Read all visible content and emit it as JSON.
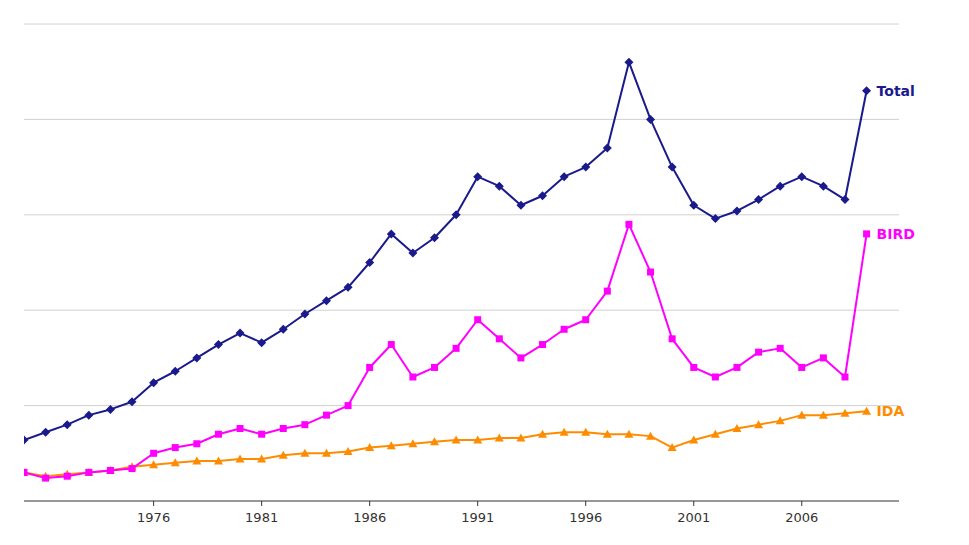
{
  "chart_data": {
    "type": "line",
    "x": [
      1970,
      1971,
      1972,
      1973,
      1974,
      1975,
      1976,
      1977,
      1978,
      1979,
      1980,
      1981,
      1982,
      1983,
      1984,
      1985,
      1986,
      1987,
      1988,
      1989,
      1990,
      1991,
      1992,
      1993,
      1994,
      1995,
      1996,
      1997,
      1998,
      1999,
      2000,
      2001,
      2002,
      2003,
      2004,
      2005,
      2006,
      2007,
      2008,
      2009
    ],
    "series": [
      {
        "name": "Total",
        "color": "#1a1a8c",
        "marker": "diamond",
        "line_style": "solid",
        "values": [
          3.2,
          3.6,
          4.0,
          4.5,
          4.8,
          5.2,
          6.2,
          6.8,
          7.5,
          8.2,
          8.8,
          8.3,
          9.0,
          9.8,
          10.5,
          11.2,
          12.5,
          14.0,
          13.0,
          13.8,
          15.0,
          17.0,
          16.5,
          15.5,
          16.0,
          17.0,
          17.5,
          18.5,
          23.0,
          20.0,
          17.5,
          15.5,
          14.8,
          15.2,
          15.8,
          16.5,
          17.0,
          16.5,
          15.8,
          21.5
        ]
      },
      {
        "name": "BIRD",
        "color": "#ff00ff",
        "marker": "square",
        "line_style": "solid",
        "values": [
          1.5,
          1.2,
          1.3,
          1.5,
          1.6,
          1.7,
          2.5,
          2.8,
          3.0,
          3.5,
          3.8,
          3.5,
          3.8,
          4.0,
          4.5,
          5.0,
          7.0,
          8.2,
          6.5,
          7.0,
          8.0,
          9.5,
          8.5,
          7.5,
          8.2,
          9.0,
          9.5,
          11.0,
          14.5,
          12.0,
          8.5,
          7.0,
          6.5,
          7.0,
          7.8,
          8.0,
          7.0,
          7.5,
          6.5,
          14.0
        ]
      },
      {
        "name": "IDA",
        "color": "#ff8c00",
        "marker": "triangle",
        "line_style": "solid",
        "values": [
          1.5,
          1.3,
          1.4,
          1.5,
          1.6,
          1.8,
          1.9,
          2.0,
          2.1,
          2.1,
          2.2,
          2.2,
          2.4,
          2.5,
          2.5,
          2.6,
          2.8,
          2.9,
          3.0,
          3.1,
          3.2,
          3.2,
          3.3,
          3.3,
          3.5,
          3.6,
          3.6,
          3.5,
          3.5,
          3.4,
          2.8,
          3.2,
          3.5,
          3.8,
          4.0,
          4.2,
          4.5,
          4.5,
          4.6,
          4.7
        ]
      }
    ],
    "xlim": [
      1970,
      2010.5
    ],
    "xticks": [
      1976,
      1981,
      1986,
      1991,
      1996,
      2001,
      2006
    ],
    "ylim": [
      0,
      25
    ],
    "yticks": [
      0,
      5,
      10,
      15,
      20,
      25
    ],
    "grid": true,
    "tick_labels": "x"
  }
}
